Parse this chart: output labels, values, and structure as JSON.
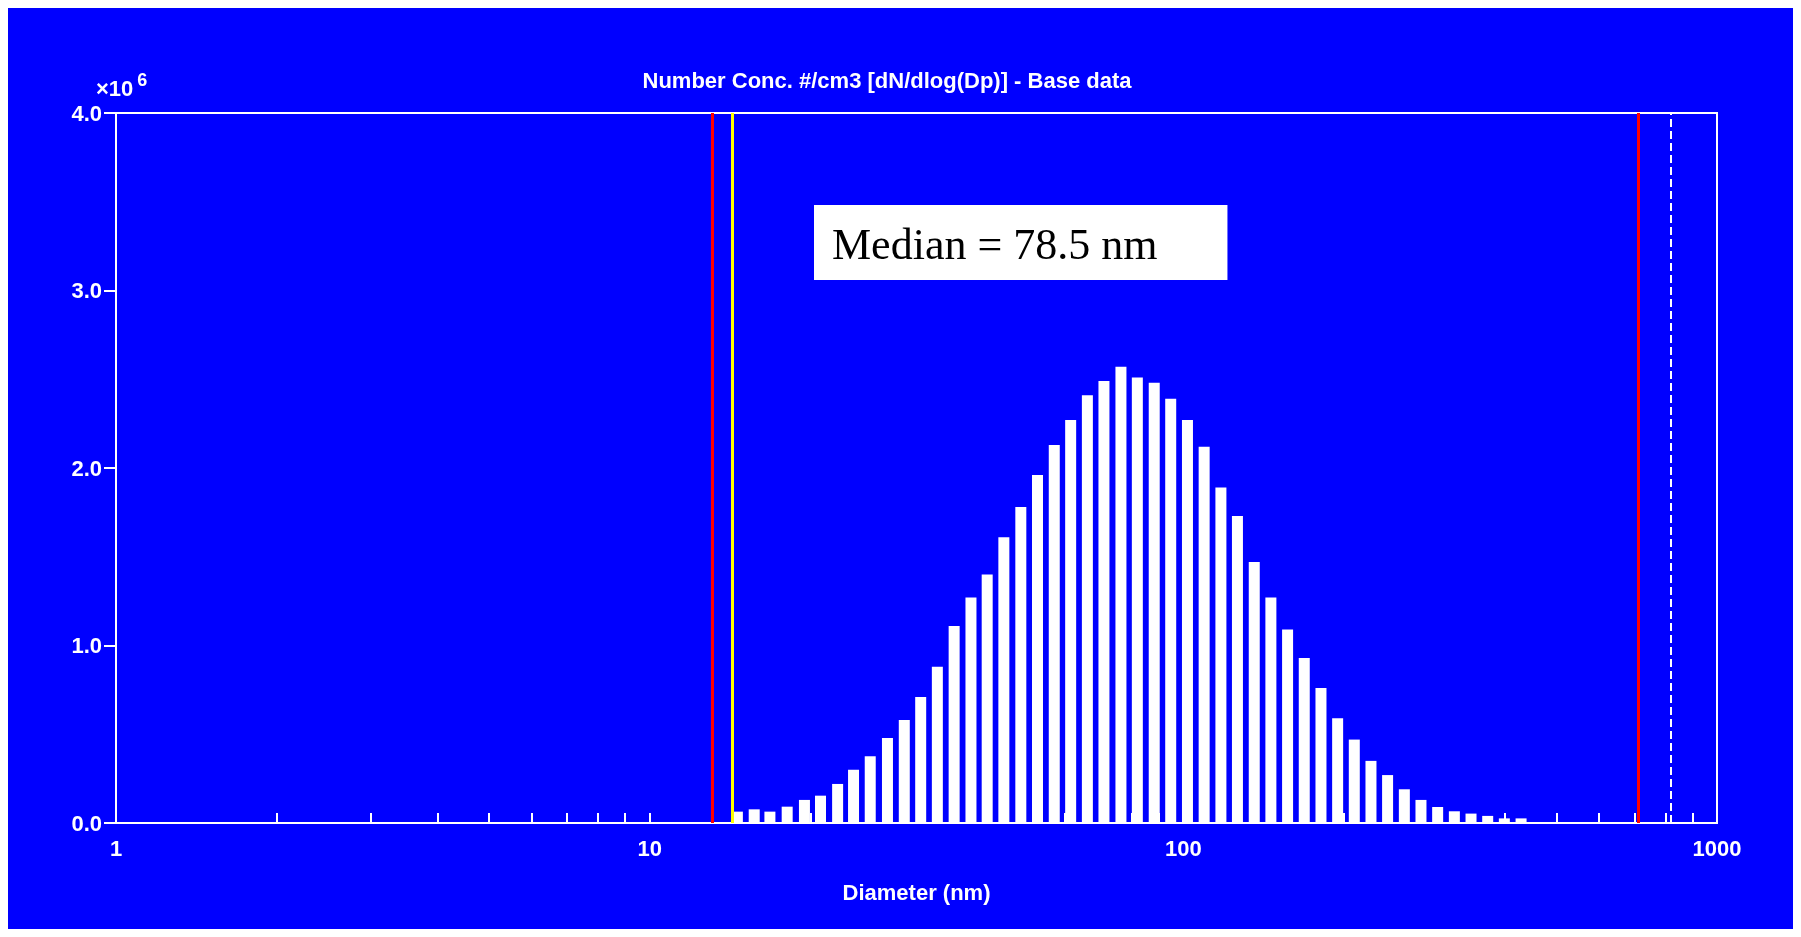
{
  "chart_data": {
    "type": "bar",
    "title": "Number Conc. #/cm3 [dN/dlog(Dp)] - Base data",
    "xlabel": "Diameter (nm)",
    "ylabel": "×10$^{6}$",
    "annotations": [
      "Median = 78.5 nm"
    ],
    "x": [
      14.6,
      15.7,
      16.8,
      18.1,
      19.5,
      20.9,
      22.5,
      24.1,
      25.9,
      27.9,
      30.0,
      32.2,
      34.6,
      37.2,
      40.0,
      42.9,
      46.1,
      49.6,
      53.3,
      57.3,
      61.5,
      66.1,
      71.0,
      76.4,
      82.0,
      88.2,
      94.7,
      101.8,
      109.4,
      117.6,
      126.3,
      135.8,
      145.9,
      156.8,
      168.5,
      181.1,
      194.6,
      209.1,
      224.7,
      241.4,
      259.5,
      278.8,
      299.6,
      322.0,
      346.0,
      371.8,
      399.5,
      429.4
    ],
    "values": [
      0.064,
      0.077,
      0.064,
      0.092,
      0.13,
      0.154,
      0.22,
      0.3,
      0.376,
      0.479,
      0.58,
      0.71,
      0.88,
      1.11,
      1.27,
      1.4,
      1.61,
      1.78,
      1.96,
      2.13,
      2.27,
      2.41,
      2.49,
      2.57,
      2.51,
      2.48,
      2.39,
      2.27,
      2.12,
      1.89,
      1.73,
      1.47,
      1.27,
      1.09,
      0.93,
      0.76,
      0.59,
      0.47,
      0.35,
      0.27,
      0.19,
      0.13,
      0.09,
      0.066,
      0.053,
      0.04,
      0.026,
      0.026
    ],
    "color": "#ffffff",
    "log": "x",
    "grid": false,
    "xlim": [
      1,
      1000
    ],
    "xticks": [
      1,
      {
        "value": 2,
        "label": null
      },
      {
        "value": 3,
        "label": null
      },
      {
        "value": 4,
        "label": null
      },
      {
        "value": 5,
        "label": null
      },
      {
        "value": 6,
        "label": null
      },
      {
        "value": 7,
        "label": null
      },
      {
        "value": 8,
        "label": null
      },
      {
        "value": 9,
        "label": null
      },
      10,
      {
        "value": 20,
        "label": null
      },
      {
        "value": 30,
        "label": null
      },
      {
        "value": 40,
        "label": null
      },
      {
        "value": 50,
        "label": null
      },
      {
        "value": 60,
        "label": null
      },
      {
        "value": 70,
        "label": null
      },
      {
        "value": 80,
        "label": null
      },
      {
        "value": 90,
        "label": null
      },
      100,
      {
        "value": 200,
        "label": null
      },
      {
        "value": 300,
        "label": null
      },
      {
        "value": 400,
        "label": null
      },
      {
        "value": 500,
        "label": null
      },
      {
        "value": 600,
        "label": null
      },
      {
        "value": 700,
        "label": null
      },
      {
        "value": 800,
        "label": null
      },
      {
        "value": 900,
        "label": null
      },
      1000
    ],
    "ylim": [
      0,
      4
    ],
    "yticks": [
      {
        "value": 0,
        "label": "0.0"
      },
      {
        "value": 1,
        "label": "1.0"
      },
      {
        "value": 2,
        "label": "2.0"
      },
      {
        "value": 3,
        "label": "3.0"
      },
      {
        "value": 4,
        "label": "4.0"
      }
    ],
    "ref_lines": [
      {
        "axis": "x",
        "value": 13.1,
        "color": "#ff0000",
        "line_style": "solid"
      },
      {
        "axis": "x",
        "value": 14.3,
        "color": "#ffff00",
        "line_style": "solid"
      },
      {
        "axis": "x",
        "value": 713,
        "color": "#ff0000",
        "line_style": "solid"
      },
      {
        "axis": "x",
        "value": 819,
        "color": "#ffffff",
        "line_style": "dashed"
      }
    ]
  }
}
